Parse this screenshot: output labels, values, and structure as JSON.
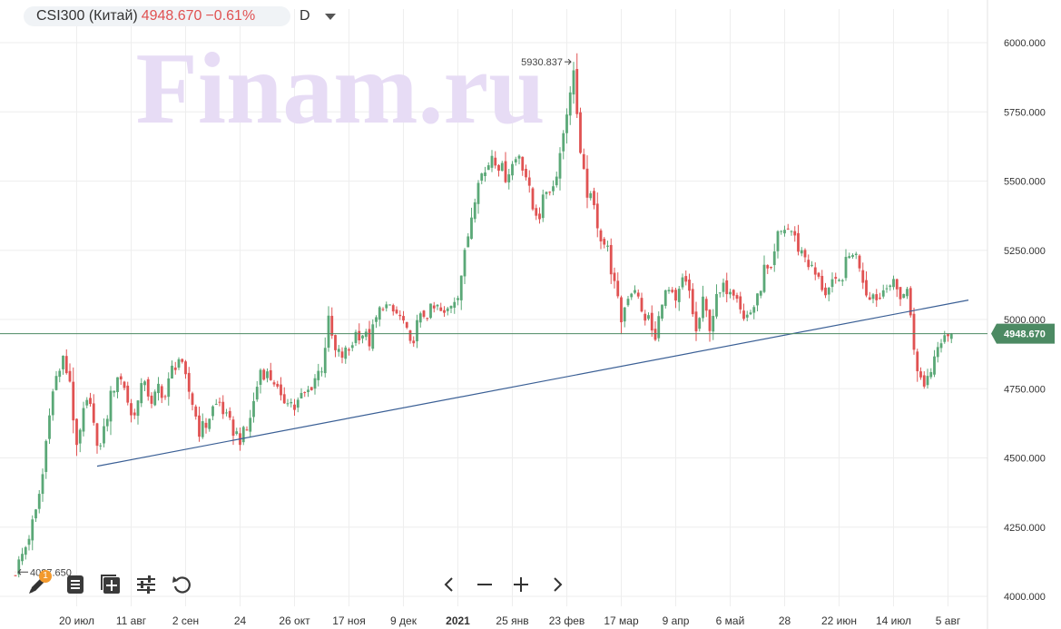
{
  "header": {
    "symbol": "CSI300 (Китай)",
    "price": "4948.670",
    "change": "−0.61%",
    "interval": "D"
  },
  "watermark": "Finam.ru",
  "toolbar": {
    "draw_badge": "1"
  },
  "colors": {
    "up": "#5aa877",
    "down": "#e05252",
    "trendline": "#3a5f95",
    "price_line": "#4c8a63",
    "watermark": "#e7dcf5",
    "grid": "#eeeeee"
  },
  "chart_data": {
    "type": "candlestick",
    "title": "CSI300 (Китай)",
    "interval": "D",
    "last_price": "4948.670",
    "last_change": "−0.61%",
    "y_axis": {
      "range": [
        3980,
        6110
      ],
      "ticks": [
        "4000.000",
        "4250.000",
        "4500.000",
        "4750.000",
        "5000.000",
        "5250.000",
        "5500.000",
        "5750.000",
        "6000.000"
      ],
      "tick_values": [
        4000,
        4250,
        4500,
        4750,
        5000,
        5250,
        5500,
        5750,
        6000
      ]
    },
    "x_axis": {
      "ticks": [
        "20 июл",
        "11 авг",
        "2 сен",
        "24",
        "26 окт",
        "17 ноя",
        "9 дек",
        "2021",
        "25 янв",
        "23 фев",
        "17 мар",
        "9 апр",
        "6 май",
        "28",
        "22 июн",
        "14 июл",
        "5 авг"
      ],
      "tick_index": [
        18,
        34,
        50,
        66,
        82,
        98,
        114,
        130,
        146,
        162,
        178,
        194,
        210,
        226,
        242,
        258,
        274
      ]
    },
    "price_line_label": "4948.670",
    "high_annotation": "5930.837",
    "low_annotation": "4087.650",
    "trendline": {
      "from": {
        "index": 24,
        "value": 4470
      },
      "to": {
        "index": 280,
        "value": 5070
      }
    },
    "anchors": [
      [
        0,
        4090
      ],
      [
        3,
        4180
      ],
      [
        6,
        4300
      ],
      [
        8,
        4440
      ],
      [
        10,
        4680
      ],
      [
        12,
        4790
      ],
      [
        14,
        4850
      ],
      [
        16,
        4780
      ],
      [
        18,
        4520
      ],
      [
        20,
        4660
      ],
      [
        22,
        4720
      ],
      [
        24,
        4520
      ],
      [
        26,
        4600
      ],
      [
        28,
        4720
      ],
      [
        30,
        4800
      ],
      [
        32,
        4760
      ],
      [
        34,
        4650
      ],
      [
        36,
        4700
      ],
      [
        38,
        4790
      ],
      [
        40,
        4680
      ],
      [
        42,
        4760
      ],
      [
        44,
        4720
      ],
      [
        46,
        4820
      ],
      [
        48,
        4860
      ],
      [
        50,
        4780
      ],
      [
        52,
        4700
      ],
      [
        54,
        4600
      ],
      [
        56,
        4620
      ],
      [
        58,
        4680
      ],
      [
        60,
        4700
      ],
      [
        62,
        4640
      ],
      [
        64,
        4600
      ],
      [
        66,
        4570
      ],
      [
        68,
        4600
      ],
      [
        70,
        4700
      ],
      [
        72,
        4820
      ],
      [
        74,
        4800
      ],
      [
        76,
        4780
      ],
      [
        78,
        4700
      ],
      [
        80,
        4720
      ],
      [
        82,
        4680
      ],
      [
        84,
        4720
      ],
      [
        86,
        4740
      ],
      [
        88,
        4790
      ],
      [
        90,
        4830
      ],
      [
        92,
        4990
      ],
      [
        94,
        4880
      ],
      [
        96,
        4870
      ],
      [
        98,
        4890
      ],
      [
        100,
        4950
      ],
      [
        102,
        4950
      ],
      [
        104,
        4920
      ],
      [
        106,
        5000
      ],
      [
        108,
        5060
      ],
      [
        110,
        5030
      ],
      [
        112,
        5020
      ],
      [
        114,
        4990
      ],
      [
        116,
        4900
      ],
      [
        118,
        4980
      ],
      [
        120,
        5020
      ],
      [
        122,
        5030
      ],
      [
        124,
        5040
      ],
      [
        126,
        5010
      ],
      [
        128,
        5060
      ],
      [
        130,
        5100
      ],
      [
        132,
        5230
      ],
      [
        134,
        5380
      ],
      [
        136,
        5520
      ],
      [
        138,
        5530
      ],
      [
        140,
        5600
      ],
      [
        142,
        5560
      ],
      [
        144,
        5520
      ],
      [
        146,
        5560
      ],
      [
        148,
        5600
      ],
      [
        150,
        5520
      ],
      [
        152,
        5400
      ],
      [
        154,
        5380
      ],
      [
        156,
        5470
      ],
      [
        158,
        5480
      ],
      [
        160,
        5600
      ],
      [
        162,
        5760
      ],
      [
        164,
        5850
      ],
      [
        165,
        5740
      ],
      [
        166,
        5580
      ],
      [
        168,
        5460
      ],
      [
        170,
        5400
      ],
      [
        172,
        5300
      ],
      [
        174,
        5250
      ],
      [
        176,
        5120
      ],
      [
        178,
        5000
      ],
      [
        180,
        5090
      ],
      [
        182,
        5120
      ],
      [
        184,
        5020
      ],
      [
        186,
        5000
      ],
      [
        188,
        4920
      ],
      [
        190,
        5080
      ],
      [
        192,
        5100
      ],
      [
        194,
        5050
      ],
      [
        196,
        5140
      ],
      [
        198,
        5100
      ],
      [
        200,
        4950
      ],
      [
        202,
        5060
      ],
      [
        204,
        4980
      ],
      [
        206,
        5070
      ],
      [
        208,
        5110
      ],
      [
        210,
        5120
      ],
      [
        212,
        5100
      ],
      [
        214,
        5000
      ],
      [
        216,
        5030
      ],
      [
        218,
        5070
      ],
      [
        220,
        5180
      ],
      [
        222,
        5160
      ],
      [
        224,
        5300
      ],
      [
        226,
        5330
      ],
      [
        228,
        5320
      ],
      [
        230,
        5260
      ],
      [
        232,
        5230
      ],
      [
        234,
        5180
      ],
      [
        236,
        5140
      ],
      [
        238,
        5100
      ],
      [
        240,
        5120
      ],
      [
        242,
        5130
      ],
      [
        244,
        5200
      ],
      [
        246,
        5250
      ],
      [
        248,
        5200
      ],
      [
        250,
        5100
      ],
      [
        252,
        5090
      ],
      [
        254,
        5080
      ],
      [
        256,
        5140
      ],
      [
        258,
        5120
      ],
      [
        260,
        5090
      ],
      [
        262,
        5100
      ],
      [
        263,
        5020
      ],
      [
        265,
        4800
      ],
      [
        267,
        4770
      ],
      [
        269,
        4820
      ],
      [
        271,
        4920
      ],
      [
        273,
        4955
      ],
      [
        275,
        4948.67
      ]
    ]
  }
}
